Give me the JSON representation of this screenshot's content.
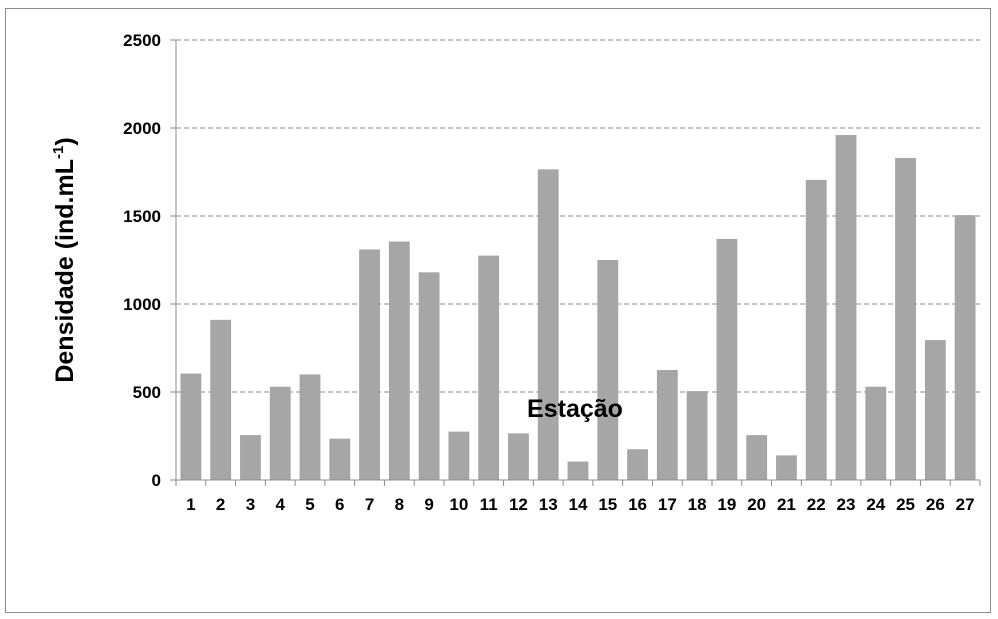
{
  "chart_data": {
    "type": "bar",
    "xlabel": "Estação",
    "ylabel_main": "Densidade (ind.mL",
    "ylabel_sup": "-1",
    "ylabel_end": ")",
    "ylim": [
      0,
      2500
    ],
    "yticks": [
      0,
      500,
      1000,
      1500,
      2000,
      2500
    ],
    "grid": "horizontal dashed",
    "legend": "none",
    "bar_color": "#a6a6a6",
    "categories": [
      "1",
      "2",
      "3",
      "4",
      "5",
      "6",
      "7",
      "8",
      "9",
      "10",
      "11",
      "12",
      "13",
      "14",
      "15",
      "16",
      "17",
      "18",
      "19",
      "20",
      "21",
      "22",
      "23",
      "24",
      "25",
      "26",
      "27"
    ],
    "values": [
      605,
      910,
      255,
      530,
      600,
      235,
      1310,
      1355,
      1180,
      275,
      1275,
      265,
      1765,
      105,
      1250,
      175,
      625,
      505,
      1370,
      255,
      140,
      1705,
      1960,
      530,
      1830,
      795,
      1505
    ]
  }
}
